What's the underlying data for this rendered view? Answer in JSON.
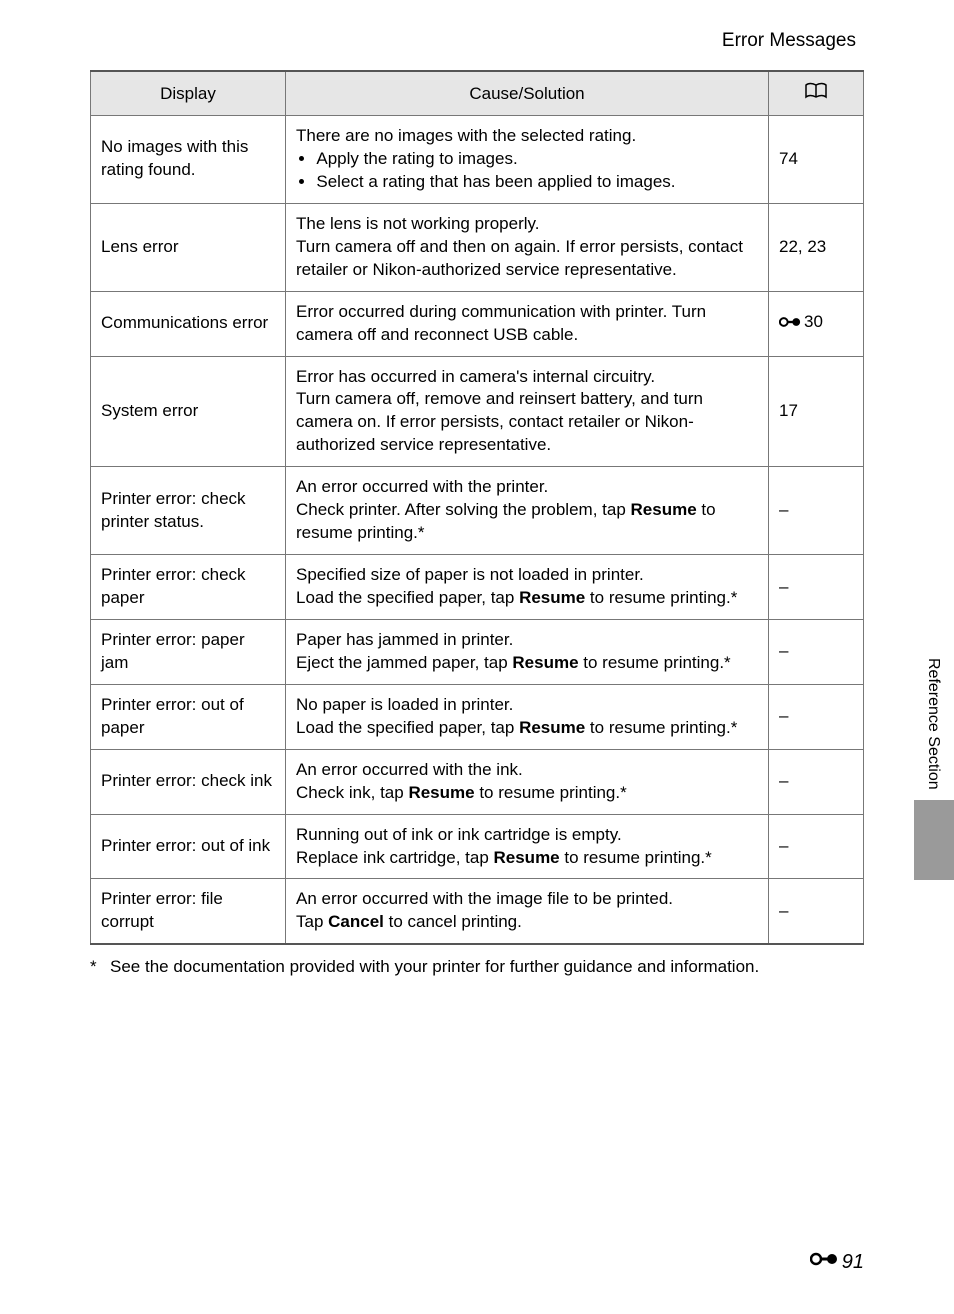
{
  "title": "Error Messages",
  "columns": {
    "display": "Display",
    "cause": "Cause/Solution",
    "ref_icon": "book"
  },
  "rows": [
    {
      "display": "No images with this rating found.",
      "cause": {
        "lead": "There are no images with the selected rating.",
        "bullets": [
          "Apply the rating to images.",
          "Select a rating that has been applied to images."
        ]
      },
      "ref": "74"
    },
    {
      "display": "Lens error",
      "cause": {
        "text": "The lens is not working properly.\nTurn camera off and then on again. If error persists, contact retailer or Nikon-authorized service representative."
      },
      "ref": "22, 23"
    },
    {
      "display": "Communications error",
      "cause": {
        "text": "Error occurred during communication with printer. Turn camera off and reconnect USB cable."
      },
      "ref_icon": true,
      "ref": "30"
    },
    {
      "display": "System error",
      "cause": {
        "text": "Error has occurred in camera's internal circuitry.\nTurn camera off, remove and reinsert battery, and turn camera on. If error persists, contact retailer or Nikon-authorized service representative."
      },
      "ref": "17"
    },
    {
      "display": "Printer error: check printer status.",
      "cause": {
        "segments": [
          {
            "t": "An error occurred with the printer.\nCheck printer. After solving the problem, tap "
          },
          {
            "t": "Resume",
            "b": true
          },
          {
            "t": " to resume printing.*"
          }
        ]
      },
      "ref": "–"
    },
    {
      "display": "Printer error: check paper",
      "cause": {
        "segments": [
          {
            "t": "Specified size of paper is not loaded in printer.\nLoad the specified paper, tap "
          },
          {
            "t": "Resume",
            "b": true
          },
          {
            "t": " to resume printing.*"
          }
        ]
      },
      "ref": "–"
    },
    {
      "display": "Printer error: paper jam",
      "cause": {
        "segments": [
          {
            "t": "Paper has jammed in printer.\nEject the jammed paper, tap "
          },
          {
            "t": "Resume",
            "b": true
          },
          {
            "t": " to resume printing.*"
          }
        ]
      },
      "ref": "–"
    },
    {
      "display": "Printer error: out of paper",
      "cause": {
        "segments": [
          {
            "t": "No paper is loaded in printer.\nLoad the specified paper, tap "
          },
          {
            "t": "Resume",
            "b": true
          },
          {
            "t": " to resume printing.*"
          }
        ]
      },
      "ref": "–"
    },
    {
      "display": "Printer error: check ink",
      "cause": {
        "segments": [
          {
            "t": "An error occurred with the ink.\nCheck ink, tap "
          },
          {
            "t": "Resume",
            "b": true
          },
          {
            "t": " to resume printing.*"
          }
        ]
      },
      "ref": "–"
    },
    {
      "display": "Printer error: out of ink",
      "cause": {
        "segments": [
          {
            "t": "Running out of ink or ink cartridge is empty.\nReplace ink cartridge, tap "
          },
          {
            "t": "Resume",
            "b": true
          },
          {
            "t": " to resume printing.*"
          }
        ]
      },
      "ref": "–"
    },
    {
      "display": "Printer error: file corrupt",
      "cause": {
        "segments": [
          {
            "t": "An error occurred with the image file to be printed.\nTap "
          },
          {
            "t": "Cancel",
            "b": true
          },
          {
            "t": " to cancel printing."
          }
        ]
      },
      "ref": "–"
    }
  ],
  "footnote": {
    "mark": "*",
    "text": "See the documentation provided with your printer for further guidance and information."
  },
  "side_tab": "Reference Section",
  "page_number": "91",
  "colors": {
    "header_bg": "#e6e6e6",
    "border": "#777777",
    "side_tab_bg": "#9a9a9a",
    "text": "#000000",
    "page_bg": "#ffffff"
  }
}
